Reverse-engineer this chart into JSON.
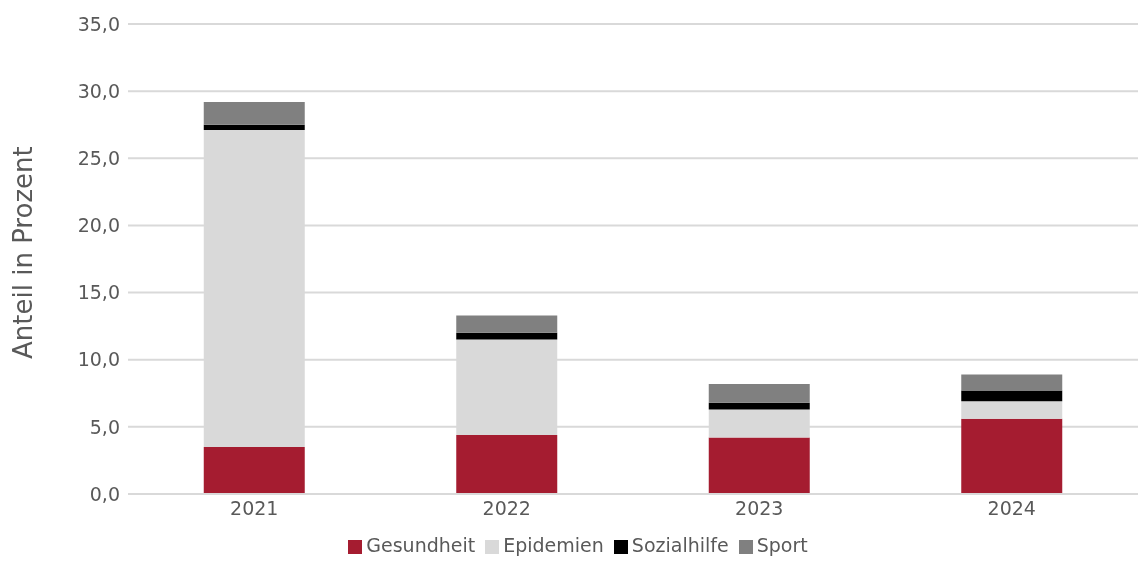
{
  "chart_data": {
    "type": "bar",
    "ylabel": "Anteil in Prozent",
    "categories": [
      "2021",
      "2022",
      "2023",
      "2024"
    ],
    "stacked": true,
    "series": [
      {
        "name": "Gesundheit",
        "color": "#a51c30",
        "values": [
          3.5,
          4.4,
          4.2,
          5.6
        ]
      },
      {
        "name": "Epidemien",
        "color": "#d9d9d9",
        "values": [
          23.6,
          7.1,
          2.1,
          1.3
        ]
      },
      {
        "name": "Sozialhilfe",
        "color": "#000000",
        "values": [
          0.4,
          0.5,
          0.5,
          0.8
        ]
      },
      {
        "name": "Sport",
        "color": "#808080",
        "values": [
          1.7,
          1.3,
          1.4,
          1.2
        ]
      }
    ],
    "ylim": [
      0,
      35
    ],
    "yticks": [
      {
        "value": 0,
        "label": "0,0"
      },
      {
        "value": 5,
        "label": "5,0"
      },
      {
        "value": 10,
        "label": "10,0"
      },
      {
        "value": 15,
        "label": "15,0"
      },
      {
        "value": 20,
        "label": "20,0"
      },
      {
        "value": 25,
        "label": "25,0"
      },
      {
        "value": 30,
        "label": "30,0"
      },
      {
        "value": 35,
        "label": "35,0"
      }
    ],
    "grid": "y",
    "legend": "bottom"
  }
}
